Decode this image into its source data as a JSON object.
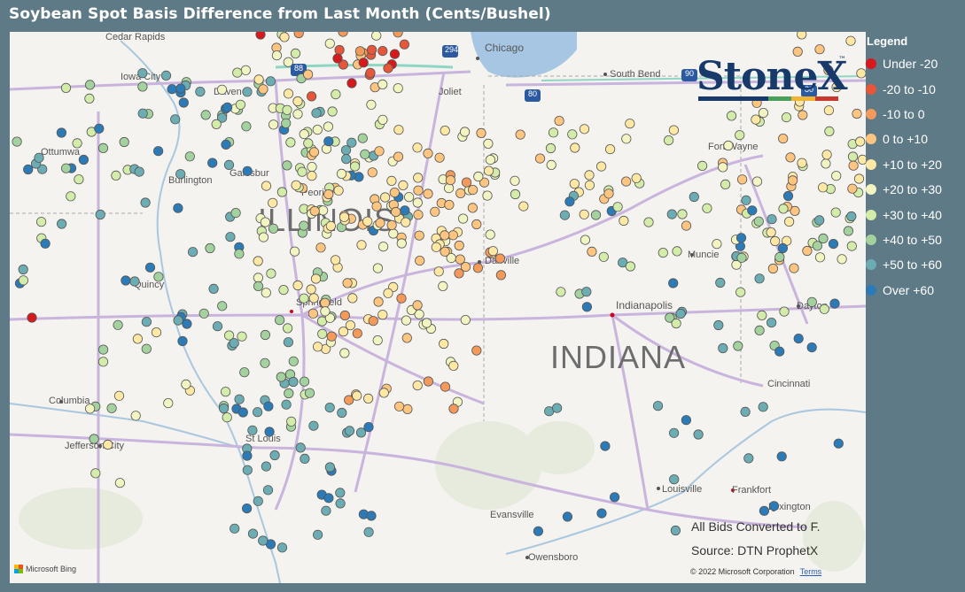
{
  "title": "Soybean Spot Basis Difference from Last Month (Cents/Bushel)",
  "legend": {
    "title": "Legend",
    "items": [
      {
        "label": "Under -20",
        "color": "#d7191c"
      },
      {
        "label": "-20 to -10",
        "color": "#e8563a"
      },
      {
        "label": "-10 to 0",
        "color": "#f39a5b"
      },
      {
        "label": "0 to +10",
        "color": "#fdc57f"
      },
      {
        "label": "+10 to +20",
        "color": "#fee8a4"
      },
      {
        "label": "+20 to +30",
        "color": "#f2f5c1"
      },
      {
        "label": "+30 to +40",
        "color": "#d4ecaa"
      },
      {
        "label": "+40 to +50",
        "color": "#a4d29f"
      },
      {
        "label": "+50 to +60",
        "color": "#6cadb4"
      },
      {
        "label": "Over +60",
        "color": "#2c7bb6"
      }
    ]
  },
  "logo": {
    "text": "StoneX",
    "tm": "™"
  },
  "notes": {
    "converted": "All Bids Converted to F.",
    "source": "Source: DTN ProphetX"
  },
  "copyright": {
    "text": "© 2022 Microsoft Corporation",
    "terms": "Terms"
  },
  "bing": "Microsoft Bing",
  "map": {
    "states": {
      "illinois": "ILLINOIS",
      "indiana": "INDIANA"
    },
    "cities": {
      "cedar_rapids": "Cedar Rapids",
      "chicago": "Chicago",
      "iowa_city": "Iowa City",
      "davenport": "Daven",
      "south_bend": "South Bend",
      "joliet": "Joliet",
      "ottumwa": "Ottumwa",
      "galesburg": "Galesbur",
      "peoria": "Peoria",
      "fort_wayne": "Fort Wayne",
      "burlington": "Burlington",
      "danville": "Danville",
      "muncie": "Muncie",
      "quincy": "Quincy",
      "springfield": "Springfield",
      "indianapolis": "Indianapolis",
      "dayton": "Dayton",
      "columbia": "Columbia",
      "cincinnati": "Cincinnati",
      "st_louis": "St Louis",
      "jefferson_city": "Jefferson City",
      "louisville": "Louisville",
      "frankfort": "Frankfort",
      "lexington": "Lexington",
      "evansville": "Evansville",
      "owensboro": "Owensboro"
    },
    "highway_shields": [
      "294",
      "90",
      "80",
      "80",
      "88",
      "90"
    ]
  }
}
